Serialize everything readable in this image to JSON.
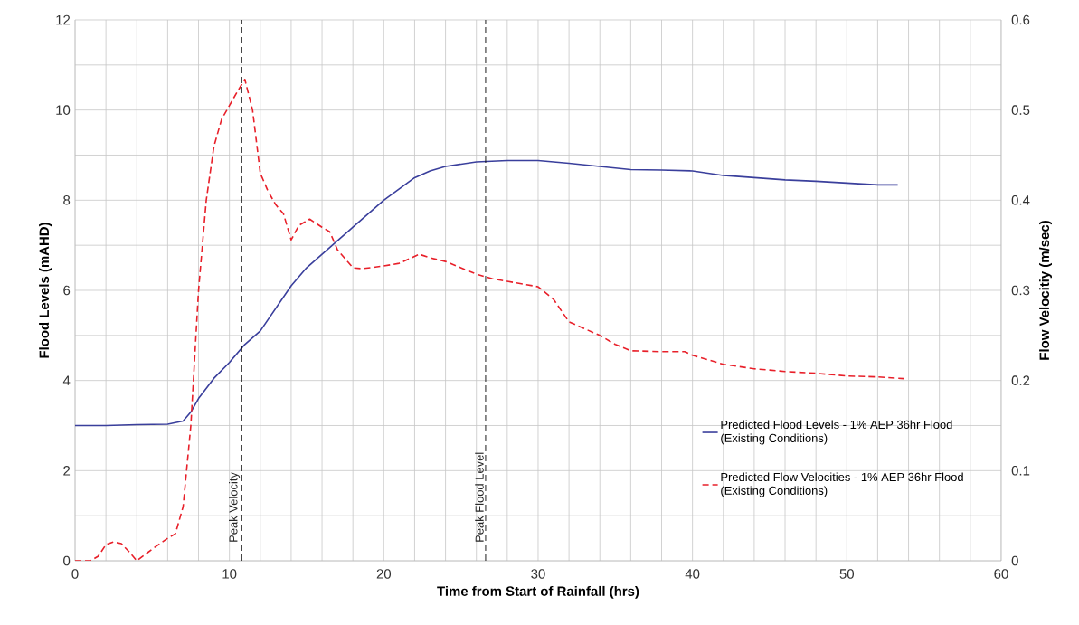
{
  "chart_data": {
    "type": "line",
    "xlabel": "Time from Start of Rainfall (hrs)",
    "ylabel": "Flood Levels (mAHD)",
    "y2label": "Flow Velocitiy (m/sec)",
    "xlim": [
      0,
      60
    ],
    "xticks": [
      0,
      {
        "value": 2,
        "label": null
      },
      {
        "value": 4,
        "label": null
      },
      {
        "value": 6,
        "label": null
      },
      {
        "value": 8,
        "label": null
      },
      10,
      {
        "value": 12,
        "label": null
      },
      {
        "value": 14,
        "label": null
      },
      {
        "value": 16,
        "label": null
      },
      {
        "value": 18,
        "label": null
      },
      20,
      {
        "value": 22,
        "label": null
      },
      {
        "value": 24,
        "label": null
      },
      {
        "value": 26,
        "label": null
      },
      {
        "value": 28,
        "label": null
      },
      30,
      {
        "value": 32,
        "label": null
      },
      {
        "value": 34,
        "label": null
      },
      {
        "value": 36,
        "label": null
      },
      {
        "value": 38,
        "label": null
      },
      40,
      {
        "value": 42,
        "label": null
      },
      {
        "value": 44,
        "label": null
      },
      {
        "value": 46,
        "label": null
      },
      {
        "value": 48,
        "label": null
      },
      50,
      {
        "value": 52,
        "label": null
      },
      {
        "value": 54,
        "label": null
      },
      {
        "value": 56,
        "label": null
      },
      {
        "value": 58,
        "label": null
      },
      60
    ],
    "ylim": [
      0,
      12
    ],
    "yticks": [
      0,
      {
        "value": 1,
        "label": null
      },
      2,
      {
        "value": 3,
        "label": null
      },
      4,
      {
        "value": 5,
        "label": null
      },
      6,
      {
        "value": 7,
        "label": null
      },
      8,
      {
        "value": 9,
        "label": null
      },
      10,
      {
        "value": 11,
        "label": null
      },
      12
    ],
    "y2lim": [
      0,
      0.6
    ],
    "y2ticks": [
      0,
      0.1,
      0.2,
      0.3,
      0.4,
      0.5,
      0.6
    ],
    "grid": true,
    "legend": "bottom right",
    "marker": "none",
    "ref_lines": [
      {
        "axis": "x",
        "value": 10.8,
        "label": "Peak Velocity",
        "color": "#000000",
        "line_style": "dashed"
      },
      {
        "axis": "x",
        "value": 26.6,
        "label": "Peak Flood Level",
        "color": "#000000",
        "line_style": "dashed"
      }
    ],
    "series": [
      {
        "name": "Predicted Flood Levels - 1% AEP 36hr Flood (Existing Conditions)",
        "color": "#3a3f9c",
        "line_style": "solid",
        "x": [
          0,
          2,
          4,
          6,
          7,
          7.5,
          8,
          9,
          10,
          11,
          12,
          13,
          14,
          15,
          16,
          17,
          18,
          19,
          20,
          21,
          22,
          23,
          24,
          25,
          26,
          28,
          30,
          32,
          34,
          36,
          38,
          40,
          42,
          44,
          46,
          48,
          50,
          52,
          53.3
        ],
        "values": [
          3.0,
          3.0,
          3.02,
          3.03,
          3.1,
          3.3,
          3.6,
          4.05,
          4.4,
          4.8,
          5.1,
          5.6,
          6.1,
          6.5,
          6.8,
          7.1,
          7.4,
          7.7,
          8.0,
          8.25,
          8.5,
          8.65,
          8.75,
          8.8,
          8.85,
          8.88,
          8.88,
          8.82,
          8.75,
          8.68,
          8.67,
          8.65,
          8.55,
          8.5,
          8.45,
          8.42,
          8.38,
          8.34,
          8.34
        ]
      },
      {
        "name": "Predicted Flow Velocities - 1% AEP 36hr Flood (Existing Conditions)",
        "color": "#e8202a",
        "line_style": "dashed",
        "axis": "y2",
        "x": [
          0,
          1,
          1.5,
          2,
          2.5,
          3,
          3.5,
          4,
          5,
          6,
          6.5,
          7,
          7.5,
          8,
          8.5,
          9,
          9.5,
          10,
          10.5,
          11,
          11.5,
          12,
          12.5,
          13,
          13.5,
          14,
          14.5,
          15.2,
          16,
          16.5,
          17,
          18,
          18.6,
          20,
          21,
          22.3,
          23,
          24,
          25,
          26,
          27,
          28,
          29,
          30,
          31,
          32,
          34,
          35,
          36,
          38,
          39.5,
          40,
          42,
          44,
          46,
          48,
          50,
          52,
          53.7
        ],
        "values": [
          0,
          0,
          0.005,
          0.018,
          0.021,
          0.019,
          0.01,
          0.0,
          0.013,
          0.025,
          0.03,
          0.06,
          0.15,
          0.3,
          0.4,
          0.46,
          0.49,
          0.505,
          0.52,
          0.534,
          0.5,
          0.43,
          0.41,
          0.395,
          0.385,
          0.356,
          0.372,
          0.379,
          0.37,
          0.365,
          0.345,
          0.325,
          0.324,
          0.327,
          0.33,
          0.34,
          0.336,
          0.332,
          0.325,
          0.318,
          0.313,
          0.31,
          0.307,
          0.304,
          0.29,
          0.265,
          0.25,
          0.24,
          0.233,
          0.232,
          0.232,
          0.228,
          0.218,
          0.213,
          0.21,
          0.208,
          0.205,
          0.204,
          0.202
        ]
      }
    ]
  }
}
